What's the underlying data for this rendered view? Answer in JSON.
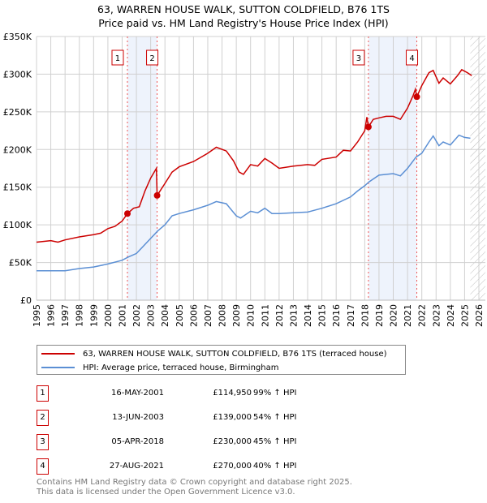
{
  "title": "63, WARREN HOUSE WALK, SUTTON COLDFIELD, B76 1TS",
  "subtitle": "Price paid vs. HM Land Registry's House Price Index (HPI)",
  "chart_data": {
    "type": "line",
    "ylim": [
      0,
      350000
    ],
    "xlim": [
      1995,
      2026
    ],
    "yticks": [
      {
        "v": 0,
        "label": "£0"
      },
      {
        "v": 50000,
        "label": "£50K"
      },
      {
        "v": 100000,
        "label": "£100K"
      },
      {
        "v": 150000,
        "label": "£150K"
      },
      {
        "v": 200000,
        "label": "£200K"
      },
      {
        "v": 250000,
        "label": "£250K"
      },
      {
        "v": 300000,
        "label": "£300K"
      },
      {
        "v": 350000,
        "label": "£350K"
      }
    ],
    "xticks": [
      "1995",
      "1996",
      "1997",
      "1998",
      "1999",
      "2000",
      "2001",
      "2002",
      "2003",
      "2004",
      "2005",
      "2006",
      "2007",
      "2008",
      "2009",
      "2010",
      "2011",
      "2012",
      "2013",
      "2014",
      "2015",
      "2016",
      "2017",
      "2018",
      "2019",
      "2020",
      "2021",
      "2022",
      "2023",
      "2024",
      "2025",
      "2026"
    ],
    "series": [
      {
        "name": "63, WARREN HOUSE WALK, SUTTON COLDFIELD, B76 1TS (terraced house)",
        "color": "#cc0000",
        "x": [
          1995,
          1996,
          1996.5,
          1997,
          1998,
          1999,
          1999.5,
          2000,
          2000.5,
          2001,
          2001.37,
          2001.8,
          2002.2,
          2002.6,
          2003.0,
          2003.4,
          2003.45,
          2004,
          2004.5,
          2005,
          2006,
          2007,
          2007.6,
          2008.3,
          2008.8,
          2009.2,
          2009.5,
          2010,
          2010.5,
          2011,
          2011.5,
          2012,
          2013,
          2014,
          2014.5,
          2015,
          2016,
          2016.5,
          2017,
          2017.5,
          2018,
          2018.15,
          2018.26,
          2018.6,
          2019,
          2019.5,
          2020,
          2020.5,
          2021,
          2021.4,
          2021.55,
          2021.65,
          2022,
          2022.5,
          2022.8,
          2023.2,
          2023.5,
          2024,
          2024.5,
          2024.8,
          2025.2,
          2025.5
        ],
        "y": [
          77000,
          79000,
          77000,
          80000,
          84000,
          87000,
          89000,
          95000,
          98000,
          105000,
          114950,
          122000,
          124000,
          145000,
          162000,
          175000,
          139000,
          155000,
          170000,
          177000,
          184000,
          195000,
          203000,
          198000,
          185000,
          170000,
          167000,
          180000,
          178000,
          188000,
          182000,
          175000,
          178000,
          180000,
          179000,
          187000,
          190000,
          199000,
          198000,
          210000,
          225000,
          243000,
          230000,
          240000,
          242000,
          244000,
          244000,
          240000,
          255000,
          272000,
          280000,
          270000,
          285000,
          302000,
          305000,
          288000,
          295000,
          287000,
          298000,
          306000,
          302000,
          298000
        ]
      },
      {
        "name": "HPI: Average price, terraced house, Birmingham",
        "color": "#5b8fd4",
        "x": [
          1995,
          1997,
          1998,
          1999,
          2000,
          2001,
          2001.4,
          2002,
          2002.5,
          2003,
          2003.5,
          2004,
          2004.5,
          2005,
          2006,
          2007,
          2007.6,
          2008.3,
          2009,
          2009.3,
          2010,
          2010.5,
          2011,
          2011.5,
          2012,
          2013,
          2014,
          2015,
          2016,
          2017,
          2017.5,
          2018,
          2018.3,
          2019,
          2020,
          2020.5,
          2021,
          2021.6,
          2022,
          2022.5,
          2022.8,
          2023.2,
          2023.5,
          2024,
          2024.6,
          2025,
          2025.4
        ],
        "y": [
          39000,
          39000,
          42000,
          44000,
          48000,
          53000,
          57000,
          62000,
          72000,
          82000,
          92000,
          100000,
          112000,
          115000,
          120000,
          126000,
          131000,
          128000,
          112000,
          109000,
          118000,
          116000,
          122000,
          115000,
          115000,
          116000,
          117000,
          122000,
          128000,
          137000,
          145000,
          152000,
          157000,
          166000,
          168000,
          165000,
          175000,
          190000,
          195000,
          210000,
          218000,
          205000,
          210000,
          206000,
          219000,
          216000,
          215000
        ]
      }
    ],
    "sales": [
      {
        "n": "1",
        "x": 2001.37,
        "y": 114950
      },
      {
        "n": "2",
        "x": 2003.45,
        "y": 139000
      },
      {
        "n": "3",
        "x": 2018.26,
        "y": 230000
      },
      {
        "n": "4",
        "x": 2021.65,
        "y": 270000
      }
    ],
    "shaded": [
      [
        2001.37,
        2003.45
      ],
      [
        2018.26,
        2021.65
      ]
    ],
    "forecast_from": 2025.4
  },
  "legend": {
    "property": "63, WARREN HOUSE WALK, SUTTON COLDFIELD, B76 1TS (terraced house)",
    "hpi": "HPI: Average price, terraced house, Birmingham"
  },
  "transactions": [
    {
      "n": "1",
      "date": "16-MAY-2001",
      "price": "£114,950",
      "hpi": "99% ↑ HPI"
    },
    {
      "n": "2",
      "date": "13-JUN-2003",
      "price": "£139,000",
      "hpi": "54% ↑ HPI"
    },
    {
      "n": "3",
      "date": "05-APR-2018",
      "price": "£230,000",
      "hpi": "45% ↑ HPI"
    },
    {
      "n": "4",
      "date": "27-AUG-2021",
      "price": "£270,000",
      "hpi": "40% ↑ HPI"
    }
  ],
  "footer": [
    "Contains HM Land Registry data © Crown copyright and database right 2025.",
    "This data is licensed under the Open Government Licence v3.0."
  ]
}
